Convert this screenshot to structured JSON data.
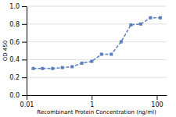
{
  "chart_data": {
    "type": "line",
    "xlabel": "Recombinant Protein Concentration (ng/ml)",
    "ylabel": "OD 450",
    "x": [
      0.016,
      0.031,
      0.063,
      0.125,
      0.25,
      0.5,
      1.0,
      2.0,
      4.0,
      8.0,
      16.0,
      32.0,
      64.0,
      128.0
    ],
    "values": [
      0.3,
      0.3,
      0.3,
      0.31,
      0.32,
      0.36,
      0.38,
      0.46,
      0.46,
      0.6,
      0.79,
      0.8,
      0.87,
      0.87
    ],
    "color": "#5b7fbe",
    "marker": "square",
    "line_style": "dashed",
    "log": "x",
    "xlim": [
      0.01,
      200
    ],
    "ylim": [
      0.0,
      1.0
    ],
    "xticks": [
      0.01,
      1,
      100
    ],
    "yticks": [
      {
        "value": 0.0,
        "label": "0.0"
      },
      0.2,
      0.4,
      0.6,
      0.8,
      {
        "value": 1.0,
        "label": "1.0"
      }
    ],
    "grid": true
  }
}
